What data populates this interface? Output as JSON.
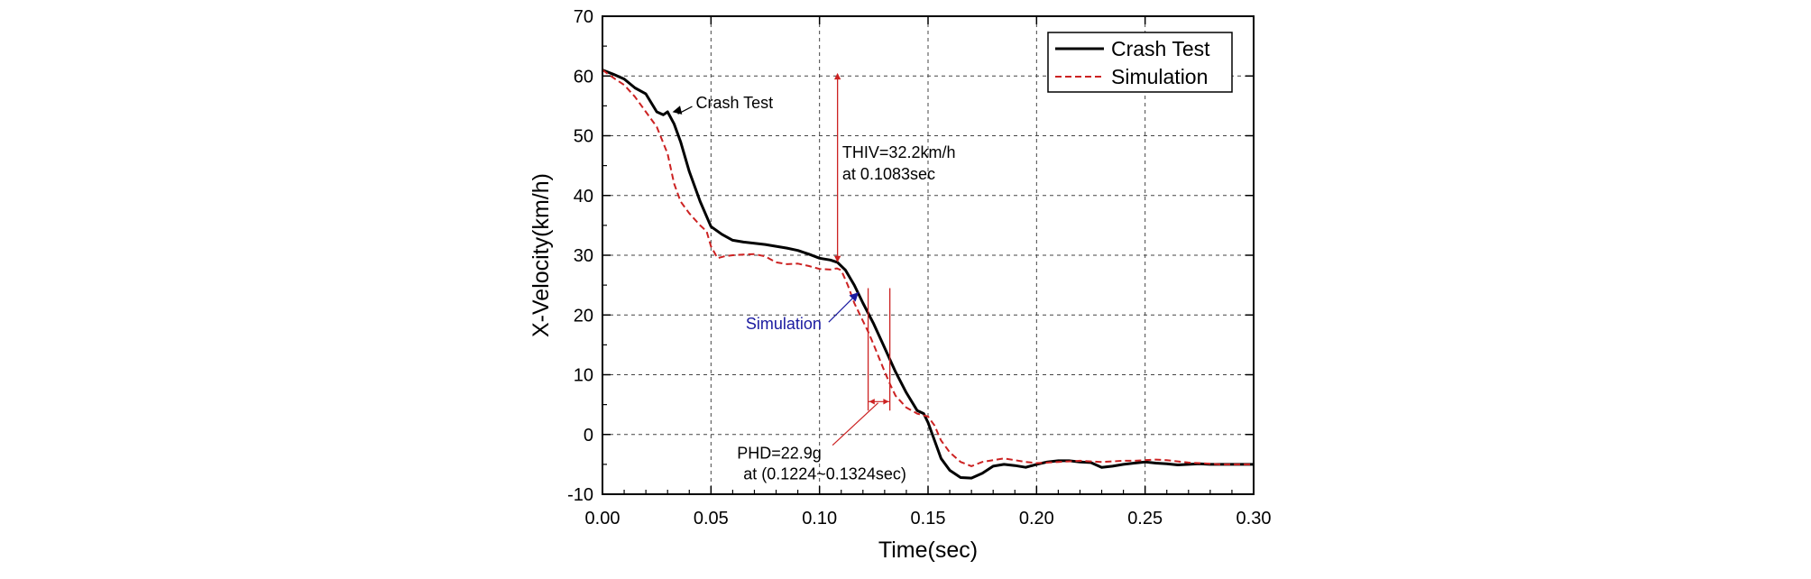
{
  "chart_data": {
    "type": "line",
    "xlabel": "Time(sec)",
    "ylabel": "X-Velocity(km/h)",
    "xlim": [
      0,
      0.3
    ],
    "ylim": [
      -10,
      70
    ],
    "x_ticks": [
      "0.00",
      "0.05",
      "0.10",
      "0.15",
      "0.20",
      "0.25",
      "0.30"
    ],
    "y_ticks": [
      "-10",
      "0",
      "10",
      "20",
      "30",
      "40",
      "50",
      "60",
      "70"
    ],
    "grid": true,
    "legend_position": "top-right",
    "series": [
      {
        "name": "Crash Test",
        "color": "#000000",
        "style": "solid",
        "points": [
          [
            0,
            61
          ],
          [
            0.005,
            60.3
          ],
          [
            0.01,
            59.5
          ],
          [
            0.015,
            58
          ],
          [
            0.02,
            57
          ],
          [
            0.025,
            54
          ],
          [
            0.028,
            53.5
          ],
          [
            0.03,
            54
          ],
          [
            0.033,
            52
          ],
          [
            0.036,
            49
          ],
          [
            0.04,
            44
          ],
          [
            0.045,
            39
          ],
          [
            0.05,
            34.8
          ],
          [
            0.055,
            33.5
          ],
          [
            0.06,
            32.5
          ],
          [
            0.065,
            32.2
          ],
          [
            0.07,
            32
          ],
          [
            0.075,
            31.8
          ],
          [
            0.08,
            31.5
          ],
          [
            0.085,
            31.2
          ],
          [
            0.09,
            30.8
          ],
          [
            0.095,
            30.2
          ],
          [
            0.1,
            29.5
          ],
          [
            0.105,
            29.2
          ],
          [
            0.1083,
            28.8
          ],
          [
            0.112,
            27.5
          ],
          [
            0.116,
            25
          ],
          [
            0.12,
            22
          ],
          [
            0.125,
            18.5
          ],
          [
            0.13,
            14.5
          ],
          [
            0.135,
            10.5
          ],
          [
            0.14,
            7
          ],
          [
            0.145,
            4
          ],
          [
            0.148,
            3.5
          ],
          [
            0.15,
            2
          ],
          [
            0.153,
            -1
          ],
          [
            0.156,
            -4
          ],
          [
            0.16,
            -6
          ],
          [
            0.165,
            -7.2
          ],
          [
            0.17,
            -7.3
          ],
          [
            0.175,
            -6.5
          ],
          [
            0.18,
            -5.3
          ],
          [
            0.185,
            -5
          ],
          [
            0.19,
            -5.2
          ],
          [
            0.195,
            -5.5
          ],
          [
            0.2,
            -5
          ],
          [
            0.205,
            -4.6
          ],
          [
            0.21,
            -4.4
          ],
          [
            0.215,
            -4.4
          ],
          [
            0.22,
            -4.6
          ],
          [
            0.225,
            -4.7
          ],
          [
            0.23,
            -5.5
          ],
          [
            0.235,
            -5.3
          ],
          [
            0.24,
            -5
          ],
          [
            0.245,
            -4.8
          ],
          [
            0.25,
            -4.6
          ],
          [
            0.255,
            -4.8
          ],
          [
            0.26,
            -4.9
          ],
          [
            0.265,
            -5.1
          ],
          [
            0.27,
            -5
          ],
          [
            0.275,
            -4.9
          ],
          [
            0.28,
            -5
          ],
          [
            0.285,
            -5
          ],
          [
            0.29,
            -5
          ],
          [
            0.295,
            -5
          ],
          [
            0.3,
            -5
          ]
        ]
      },
      {
        "name": "Simulation",
        "color": "#cc2222",
        "style": "dashed",
        "points": [
          [
            0,
            61
          ],
          [
            0.005,
            59.7
          ],
          [
            0.01,
            58.5
          ],
          [
            0.015,
            56.5
          ],
          [
            0.02,
            54
          ],
          [
            0.025,
            51.5
          ],
          [
            0.03,
            47
          ],
          [
            0.033,
            42
          ],
          [
            0.036,
            39
          ],
          [
            0.04,
            37
          ],
          [
            0.045,
            35
          ],
          [
            0.048,
            34
          ],
          [
            0.05,
            31.5
          ],
          [
            0.053,
            29.5
          ],
          [
            0.056,
            29.8
          ],
          [
            0.06,
            30
          ],
          [
            0.065,
            30.1
          ],
          [
            0.07,
            30.2
          ],
          [
            0.075,
            29.8
          ],
          [
            0.08,
            28.8
          ],
          [
            0.085,
            28.5
          ],
          [
            0.09,
            28.6
          ],
          [
            0.095,
            28.2
          ],
          [
            0.1,
            27.7
          ],
          [
            0.105,
            27.6
          ],
          [
            0.108,
            27.8
          ],
          [
            0.11,
            27.5
          ],
          [
            0.113,
            25
          ],
          [
            0.116,
            22
          ],
          [
            0.12,
            19
          ],
          [
            0.1224,
            17.2
          ],
          [
            0.125,
            15
          ],
          [
            0.13,
            10.5
          ],
          [
            0.1324,
            8.5
          ],
          [
            0.135,
            6.5
          ],
          [
            0.14,
            4.5
          ],
          [
            0.145,
            3.5
          ],
          [
            0.15,
            3
          ],
          [
            0.153,
            1.5
          ],
          [
            0.156,
            -1
          ],
          [
            0.16,
            -3
          ],
          [
            0.165,
            -4.6
          ],
          [
            0.17,
            -5.3
          ],
          [
            0.175,
            -4.6
          ],
          [
            0.18,
            -4.3
          ],
          [
            0.185,
            -4
          ],
          [
            0.19,
            -4.3
          ],
          [
            0.195,
            -4.6
          ],
          [
            0.2,
            -4.8
          ],
          [
            0.205,
            -4.7
          ],
          [
            0.21,
            -4.6
          ],
          [
            0.215,
            -4.5
          ],
          [
            0.22,
            -4.4
          ],
          [
            0.225,
            -4.5
          ],
          [
            0.23,
            -4.6
          ],
          [
            0.235,
            -4.5
          ],
          [
            0.24,
            -4.4
          ],
          [
            0.245,
            -4.4
          ],
          [
            0.25,
            -4.3
          ],
          [
            0.255,
            -4.2
          ],
          [
            0.26,
            -4.3
          ],
          [
            0.265,
            -4.5
          ],
          [
            0.27,
            -4.7
          ],
          [
            0.275,
            -4.8
          ],
          [
            0.28,
            -4.9
          ],
          [
            0.285,
            -5
          ],
          [
            0.29,
            -5
          ],
          [
            0.295,
            -5
          ],
          [
            0.3,
            -5
          ]
        ]
      }
    ],
    "annotations": {
      "crash_label": {
        "text": "Crash Test",
        "target": [
          0.031,
          53.8
        ],
        "text_at": [
          0.043,
          55.5
        ]
      },
      "sim_label": {
        "text": "Simulation",
        "target": [
          0.118,
          23.8
        ],
        "text_at": [
          0.066,
          17.6
        ]
      },
      "thiv": {
        "lines": [
          "THIV=32.2km/h",
          "at 0.1083sec"
        ],
        "time": 0.1083,
        "from": 60.5,
        "to": 28.8,
        "text_at": [
          0.1105,
          46.3
        ]
      },
      "phd": {
        "lines": [
          "PHD=22.9g",
          "at (0.1224~0.1324sec)"
        ],
        "t1": 0.1224,
        "t2": 0.1324,
        "arrow_y": 5.5,
        "vline_top": 24.5,
        "vline_bottom": 4,
        "leader_from": [
          0.127,
          5.3
        ],
        "leader_to": [
          0.106,
          -1.8
        ],
        "text_at": [
          0.062,
          -4.0
        ]
      }
    }
  }
}
